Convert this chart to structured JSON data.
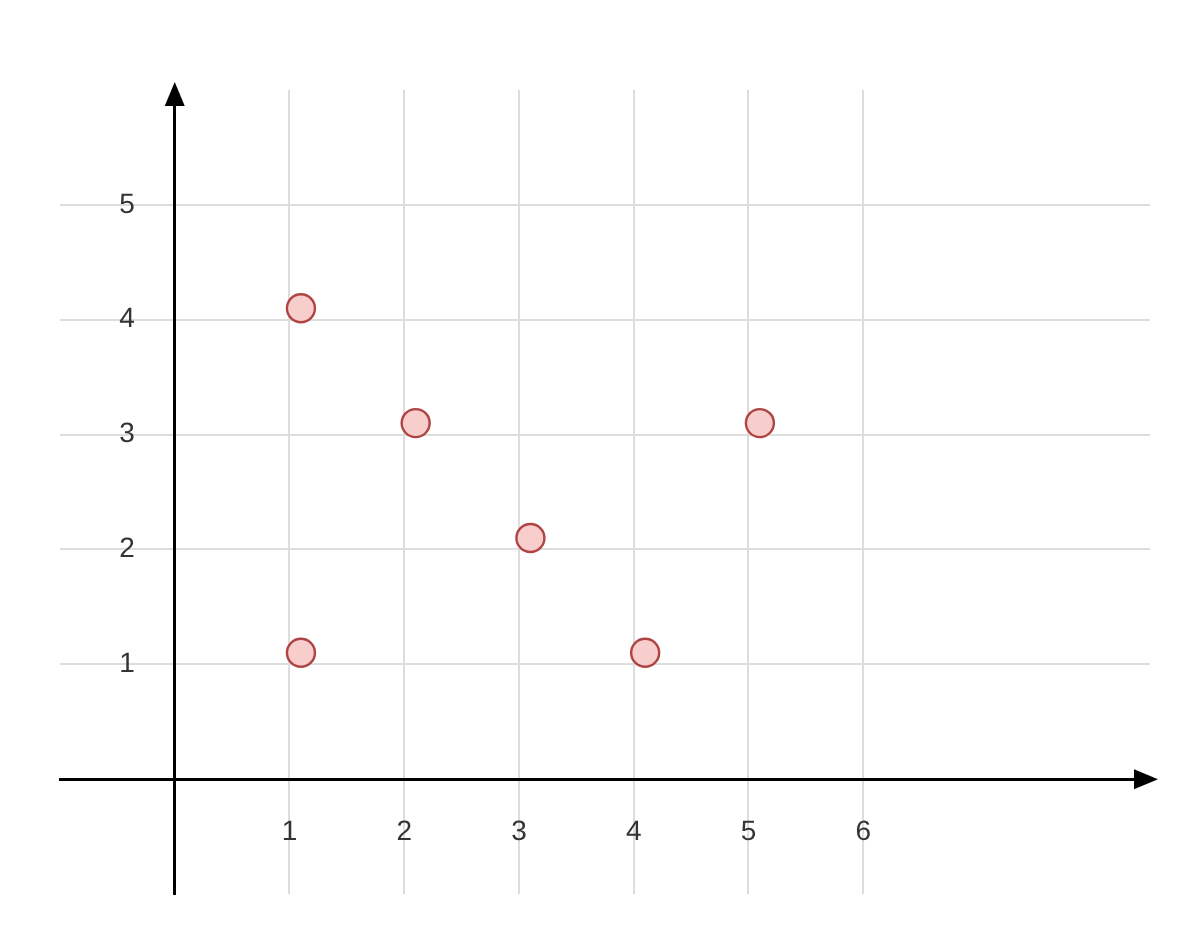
{
  "chart_data": {
    "type": "scatter",
    "x": [
      1.1,
      1.1,
      2.1,
      3.1,
      4.1,
      5.1
    ],
    "values": [
      1.1,
      4.1,
      3.1,
      2.1,
      1.1,
      3.1
    ],
    "color": "#f8cecc",
    "xlim": [
      -1,
      8.5
    ],
    "ylim": [
      -1,
      6
    ],
    "xticks": [
      1,
      2,
      3,
      4,
      5,
      6
    ],
    "yticks": [
      1,
      2,
      3,
      4,
      5
    ],
    "grid": true,
    "marker": "circle"
  }
}
